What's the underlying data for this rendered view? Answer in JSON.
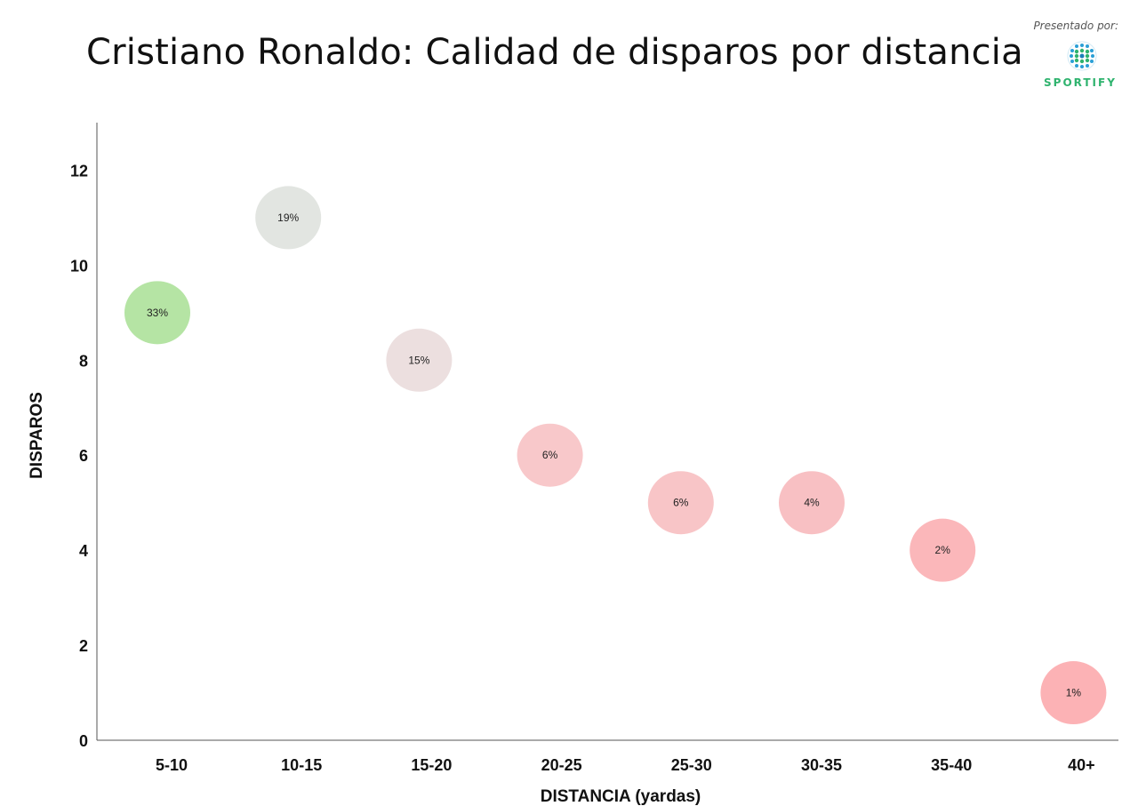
{
  "title": "Cristiano Ronaldo: Calidad de disparos por distancia",
  "sponsor": {
    "label": "Presentado por:",
    "name": "SPORTIFY",
    "icon": "sportify-logo-icon",
    "color": "#2fb36e"
  },
  "chart_data": {
    "type": "bubble",
    "xlabel": "DISTANCIA (yardas)",
    "ylabel": "DISPAROS",
    "ylim": [
      0,
      13
    ],
    "yticks": [
      0,
      2,
      4,
      6,
      8,
      10,
      12
    ],
    "categories": [
      "5-10",
      "10-15",
      "15-20",
      "20-25",
      "25-30",
      "30-35",
      "35-40",
      "40+"
    ],
    "values": [
      9,
      11,
      8,
      6,
      5,
      5,
      4,
      1
    ],
    "labels": [
      "33%",
      "19%",
      "15%",
      "6%",
      "6%",
      "4%",
      "2%",
      "1%"
    ],
    "colors": [
      "#b5e4a4",
      "#e2e5e1",
      "#ecdfdf",
      "#f8c8ca",
      "#f8c5c7",
      "#f8c0c3",
      "#fbb7ba",
      "#fcb2b5"
    ],
    "grid": false,
    "legend": "none"
  }
}
